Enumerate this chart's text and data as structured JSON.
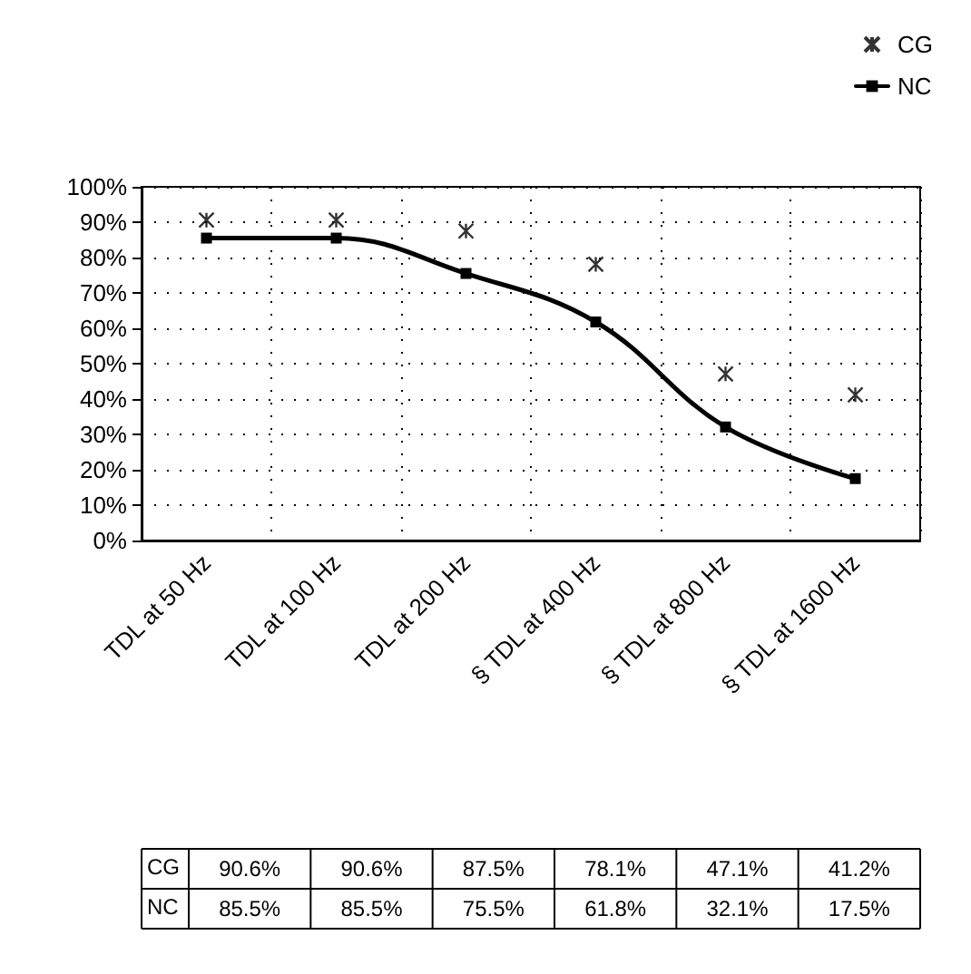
{
  "chart_data": {
    "type": "line",
    "categories": [
      "TDL at 50 Hz",
      "TDL at 100 Hz",
      "TDL at 200 Hz",
      "§ TDL at 400 Hz",
      "§ TDL at 800 Hz",
      "§ TDL at 1600 Hz"
    ],
    "series": [
      {
        "name": "CG",
        "type": "scatter",
        "marker": "cross",
        "color": "#000000",
        "values": [
          90.6,
          90.6,
          87.5,
          78.1,
          47.1,
          41.2
        ],
        "value_labels": [
          "90.6%",
          "90.6%",
          "87.5%",
          "78.1%",
          "47.1%",
          "41.2%"
        ]
      },
      {
        "name": "NC",
        "marker": "square",
        "line_style": "solid",
        "color": "#000000",
        "values": [
          85.5,
          85.5,
          75.5,
          61.8,
          32.1,
          17.5
        ],
        "value_labels": [
          "85.5%",
          "85.5%",
          "75.5%",
          "61.8%",
          "32.1%",
          "17.5%"
        ]
      }
    ],
    "ylim": [
      0,
      100
    ],
    "yticks": [
      {
        "value": 0,
        "label": "0%"
      },
      {
        "value": 10,
        "label": "10%"
      },
      {
        "value": 20,
        "label": "20%"
      },
      {
        "value": 30,
        "label": "30%"
      },
      {
        "value": 40,
        "label": "40%"
      },
      {
        "value": 50,
        "label": "50%"
      },
      {
        "value": 60,
        "label": "60%"
      },
      {
        "value": 70,
        "label": "70%"
      },
      {
        "value": 80,
        "label": "80%"
      },
      {
        "value": 90,
        "label": "90%"
      },
      {
        "value": 100,
        "label": "100%"
      }
    ],
    "grid": true,
    "legend": "top right"
  }
}
